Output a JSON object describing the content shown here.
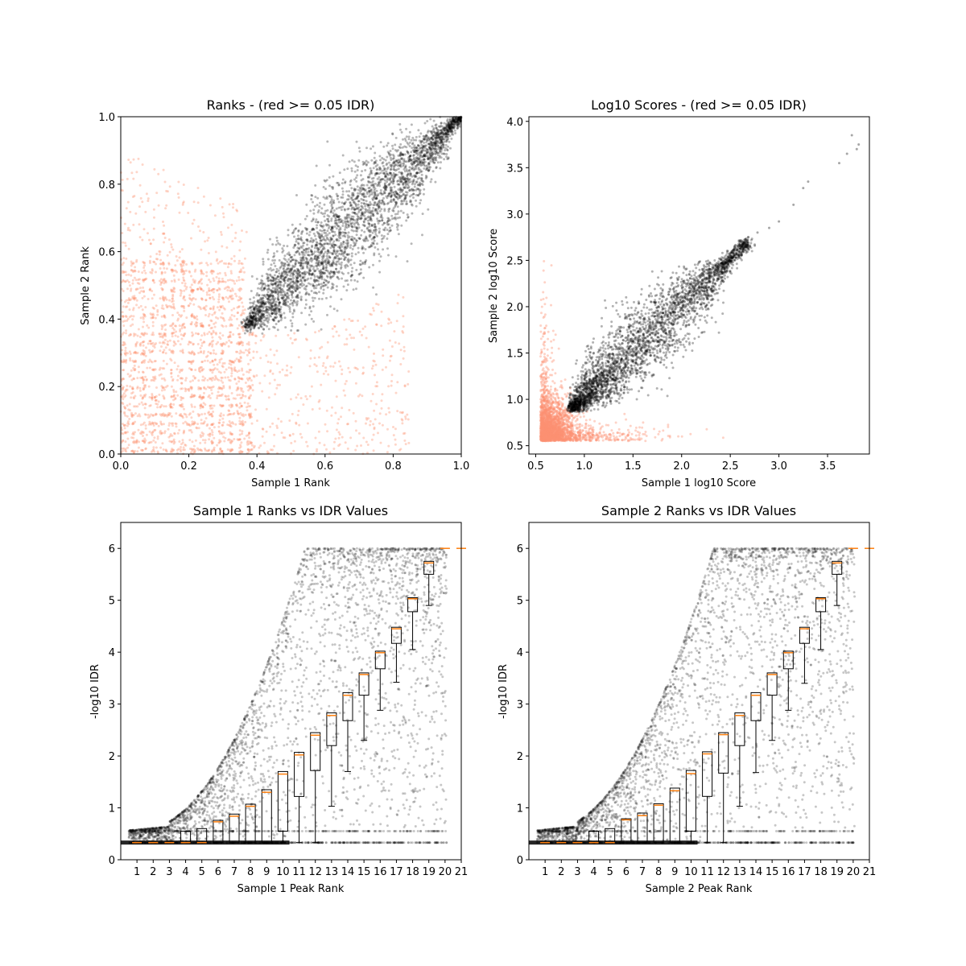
{
  "colors": {
    "fail": "#fc9272",
    "pass": "#000000",
    "median": "#ff7f0e",
    "box": "#000000"
  },
  "chart_data": [
    {
      "type": "scatter",
      "title": "Ranks - (red >= 0.05 IDR)",
      "xlabel": "Sample 1 Rank",
      "ylabel": "Sample 2 Rank",
      "xlim": [
        0,
        1
      ],
      "ylim": [
        0,
        1
      ],
      "xticks": [
        "0.0",
        "0.2",
        "0.4",
        "0.6",
        "0.8",
        "1.0"
      ],
      "yticks": [
        "0.0",
        "0.2",
        "0.4",
        "0.6",
        "0.8",
        "1.0"
      ],
      "series": [
        {
          "values": "failing peaks (red, IDR >= 0.05) spread over rank 0-0.8",
          "color": "#fc9272"
        },
        {
          "values": "passing peaks (black) dense band from (0.37,0.38) to (1.0,1.0)",
          "color": "#000000"
        }
      ]
    },
    {
      "type": "scatter",
      "title": "Log10 Scores - (red >= 0.05 IDR)",
      "xlabel": "Sample 1 log10 Score",
      "ylabel": "Sample 2 log10 Score",
      "xlim": [
        0.43,
        3.93
      ],
      "ylim": [
        0.41,
        4.05
      ],
      "xticks": [
        "0.5",
        "1.0",
        "1.5",
        "2.0",
        "2.5",
        "3.0",
        "3.5"
      ],
      "yticks": [
        "0.5",
        "1.0",
        "1.5",
        "2.0",
        "2.5",
        "3.0",
        "3.5",
        "4.0"
      ],
      "series": [
        {
          "values": "failing peaks (red) clustered near 0.55-1.2",
          "color": "#fc9272"
        },
        {
          "values": "passing peaks (black) band along diagonal from 0.85 to 2.75, outliers to 3.85",
          "color": "#000000"
        }
      ]
    },
    {
      "type": "scatter",
      "title": "Sample 1 Ranks vs IDR Values",
      "xlabel": "Sample 1 Peak Rank",
      "ylabel": "-log10 IDR",
      "xlim": [
        0,
        21
      ],
      "ylim": [
        0,
        6.5
      ],
      "xticks": [
        "1",
        "2",
        "3",
        "4",
        "5",
        "6",
        "7",
        "8",
        "9",
        "10",
        "11",
        "12",
        "13",
        "14",
        "15",
        "16",
        "17",
        "18",
        "19",
        "20",
        "21"
      ],
      "yticks": [
        "0",
        "1",
        "2",
        "3",
        "4",
        "5",
        "6"
      ],
      "box_medians": [
        0.33,
        0.33,
        0.33,
        0.33,
        0.33,
        0.73,
        0.84,
        1.03,
        1.3,
        1.65,
        2.02,
        2.4,
        2.78,
        3.17,
        3.57,
        3.99,
        4.45,
        5.03,
        5.72,
        6.0,
        6.0
      ],
      "box_q1": [
        0.33,
        0.33,
        0.33,
        0.33,
        0.33,
        0.33,
        0.33,
        0.33,
        0.33,
        0.55,
        1.22,
        1.72,
        2.2,
        2.68,
        3.17,
        3.68,
        4.17,
        4.78,
        5.5,
        6.0,
        6.0
      ],
      "box_q3": [
        0.33,
        0.33,
        0.33,
        0.55,
        0.6,
        0.76,
        0.88,
        1.07,
        1.35,
        1.7,
        2.07,
        2.45,
        2.83,
        3.22,
        3.6,
        4.02,
        4.48,
        5.05,
        5.75,
        6.0,
        6.0
      ],
      "box_whisker_low": [
        0.33,
        0.33,
        0.33,
        0.33,
        0.33,
        0.33,
        0.33,
        0.33,
        0.33,
        0.33,
        0.33,
        0.33,
        1.03,
        1.7,
        2.3,
        2.88,
        3.42,
        4.05,
        4.9,
        6.0,
        6.0
      ]
    },
    {
      "type": "scatter",
      "title": "Sample 2 Ranks vs IDR Values",
      "xlabel": "Sample 2 Peak Rank",
      "ylabel": "-log10 IDR",
      "xlim": [
        0,
        21
      ],
      "ylim": [
        0,
        6.5
      ],
      "xticks": [
        "1",
        "2",
        "3",
        "4",
        "5",
        "6",
        "7",
        "8",
        "9",
        "10",
        "11",
        "12",
        "13",
        "14",
        "15",
        "16",
        "17",
        "18",
        "19",
        "20",
        "21"
      ],
      "yticks": [
        "0",
        "1",
        "2",
        "3",
        "4",
        "5",
        "6"
      ],
      "box_medians": [
        0.33,
        0.33,
        0.33,
        0.33,
        0.33,
        0.77,
        0.85,
        1.05,
        1.33,
        1.66,
        2.04,
        2.41,
        2.78,
        3.17,
        3.57,
        3.99,
        4.45,
        5.03,
        5.72,
        6.0,
        6.0
      ],
      "box_q1": [
        0.33,
        0.33,
        0.33,
        0.33,
        0.33,
        0.33,
        0.33,
        0.33,
        0.33,
        0.55,
        1.22,
        1.67,
        2.2,
        2.68,
        3.17,
        3.68,
        4.17,
        4.78,
        5.5,
        6.0,
        6.0
      ],
      "box_q3": [
        0.33,
        0.33,
        0.33,
        0.55,
        0.6,
        0.79,
        0.9,
        1.08,
        1.38,
        1.72,
        2.08,
        2.45,
        2.83,
        3.22,
        3.6,
        4.02,
        4.48,
        5.05,
        5.75,
        6.0,
        6.0
      ],
      "box_whisker_low": [
        0.33,
        0.33,
        0.33,
        0.33,
        0.33,
        0.33,
        0.33,
        0.33,
        0.33,
        0.33,
        0.33,
        0.33,
        1.03,
        1.68,
        2.3,
        2.88,
        3.4,
        4.05,
        4.9,
        6.0,
        6.0
      ]
    }
  ]
}
